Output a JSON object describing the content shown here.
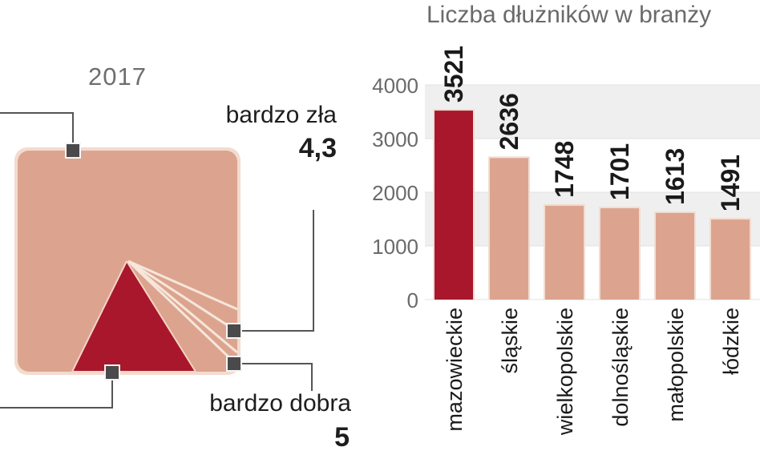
{
  "left_panel": {
    "year": "2017",
    "bardzo_zla_label": "bardzo zła",
    "bardzo_zla_value": "4,3",
    "bardzo_dobra_label": "bardzo dobra",
    "bardzo_dobra_value": "5"
  },
  "colors": {
    "accent": "#a8172b",
    "bar": "#dca48e",
    "panel": "#dca48e",
    "grid_band": "#efefef",
    "connector": "#555555"
  },
  "chart_data": {
    "type": "bar",
    "title": "Liczba dłużników w branży",
    "categories": [
      "mazowieckie",
      "śląskie",
      "wielkopolskie",
      "dolnośląskie",
      "małopolskie",
      "łódzkie"
    ],
    "values": [
      3521,
      2636,
      1748,
      1701,
      1613,
      1491
    ],
    "value_labels": [
      "3521",
      "2636",
      "1748",
      "1701",
      "1613",
      "1491"
    ],
    "highlight_index": 0,
    "yticks": [
      "0",
      "1000",
      "2000",
      "3000",
      "4000"
    ],
    "ylim": [
      0,
      4000
    ],
    "grid": true
  }
}
